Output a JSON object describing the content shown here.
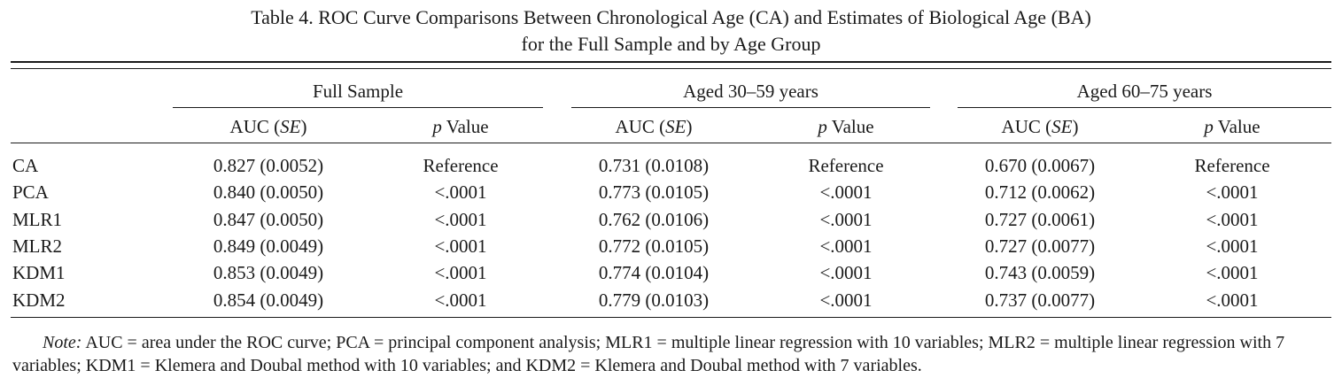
{
  "caption": {
    "line1": "Table 4.  ROC Curve Comparisons Between Chronological Age (CA) and Estimates of Biological Age (BA)",
    "line2": "for the Full Sample and by Age Group"
  },
  "groups": [
    "Full Sample",
    "Aged 30–59 years",
    "Aged 60–75 years"
  ],
  "subheader": {
    "auc_prefix": "AUC (",
    "auc_em": "SE",
    "auc_suffix": ")",
    "p_em": "p",
    "p_suffix": " Value"
  },
  "rows": [
    {
      "label": "CA",
      "cells": [
        "0.827 (0.0052)",
        "Reference",
        "0.731 (0.0108)",
        "Reference",
        "0.670 (0.0067)",
        "Reference"
      ]
    },
    {
      "label": "PCA",
      "cells": [
        "0.840 (0.0050)",
        "<.0001",
        "0.773 (0.0105)",
        "<.0001",
        "0.712 (0.0062)",
        "<.0001"
      ]
    },
    {
      "label": "MLR1",
      "cells": [
        "0.847 (0.0050)",
        "<.0001",
        "0.762 (0.0106)",
        "<.0001",
        "0.727 (0.0061)",
        "<.0001"
      ]
    },
    {
      "label": "MLR2",
      "cells": [
        "0.849 (0.0049)",
        "<.0001",
        "0.772 (0.0105)",
        "<.0001",
        "0.727 (0.0077)",
        "<.0001"
      ]
    },
    {
      "label": "KDM1",
      "cells": [
        "0.853 (0.0049)",
        "<.0001",
        "0.774 (0.0104)",
        "<.0001",
        "0.743 (0.0059)",
        "<.0001"
      ]
    },
    {
      "label": "KDM2",
      "cells": [
        "0.854 (0.0049)",
        "<.0001",
        "0.779 (0.0103)",
        "<.0001",
        "0.737 (0.0077)",
        "<.0001"
      ]
    }
  ],
  "note": {
    "label": "Note:",
    "text": " AUC = area under the ROC curve; PCA = principal component analysis; MLR1 = multiple linear regression with 10 variables; MLR2 = multiple linear regression with 7 variables; KDM1 = Klemera and Doubal method with 10 variables; and KDM2 = Klemera and Doubal method with 7 variables."
  }
}
